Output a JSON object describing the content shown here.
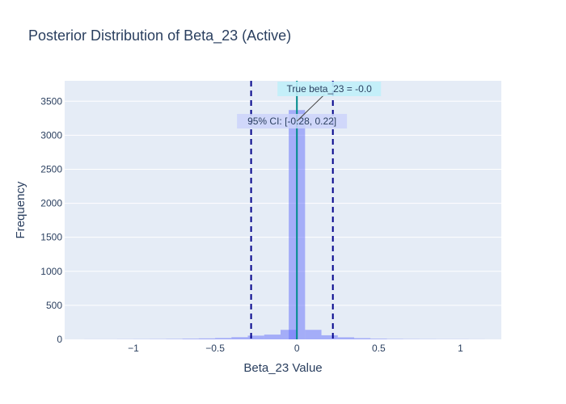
{
  "chart_data": {
    "type": "bar",
    "title": "Posterior Distribution of Beta_23 (Active)",
    "xlabel": "Beta_23 Value",
    "ylabel": "Frequency",
    "xlim": [
      -1.42,
      1.25
    ],
    "ylim": [
      0,
      3800
    ],
    "xticks": [
      -1,
      -0.5,
      0,
      0.5,
      1
    ],
    "xtick_labels": [
      "−1",
      "−0.5",
      "0",
      "0.5",
      "1"
    ],
    "yticks": [
      0,
      500,
      1000,
      1500,
      2000,
      2500,
      3000,
      3500
    ],
    "ytick_labels": [
      "0",
      "500",
      "1000",
      "1500",
      "2000",
      "2500",
      "3000",
      "3500"
    ],
    "bin_width": 0.1,
    "bins": [
      {
        "x0": -1.3,
        "count": 1
      },
      {
        "x0": -1.2,
        "count": 1
      },
      {
        "x0": -1.1,
        "count": 2
      },
      {
        "x0": -1.0,
        "count": 3
      },
      {
        "x0": -0.9,
        "count": 4
      },
      {
        "x0": -0.8,
        "count": 6
      },
      {
        "x0": -0.7,
        "count": 10
      },
      {
        "x0": -0.6,
        "count": 14
      },
      {
        "x0": -0.5,
        "count": 20
      },
      {
        "x0": -0.4,
        "count": 32
      },
      {
        "x0": -0.3,
        "count": 55
      },
      {
        "x0": -0.2,
        "count": 70
      },
      {
        "x0": -0.1,
        "count": 140
      },
      {
        "x0": -0.05,
        "count": 3370
      },
      {
        "x0": 0.05,
        "count": 140
      },
      {
        "x0": 0.15,
        "count": 60
      },
      {
        "x0": 0.25,
        "count": 30
      },
      {
        "x0": 0.35,
        "count": 18
      },
      {
        "x0": 0.45,
        "count": 10
      },
      {
        "x0": 0.55,
        "count": 6
      },
      {
        "x0": 0.65,
        "count": 4
      },
      {
        "x0": 0.75,
        "count": 3
      },
      {
        "x0": 0.85,
        "count": 2
      },
      {
        "x0": 0.95,
        "count": 2
      },
      {
        "x0": 1.05,
        "count": 1
      }
    ],
    "ci": [
      -0.28,
      0.22
    ],
    "true_value": 0.0,
    "annotations": {
      "true_value_label": "True beta_23 = -0.0",
      "ci_label": "95% CI: [-0.28, 0.22]"
    },
    "colors": {
      "bar": "#636efa",
      "ci_line": "#00008b",
      "true_line": "#008b8b",
      "true_box": "#c0f0fa",
      "ci_box": "#cdd4fa",
      "plot_bg": "#e5ecf6",
      "grid": "#ffffff",
      "text": "#2a3f5f"
    },
    "grid": true,
    "legend": "none"
  }
}
